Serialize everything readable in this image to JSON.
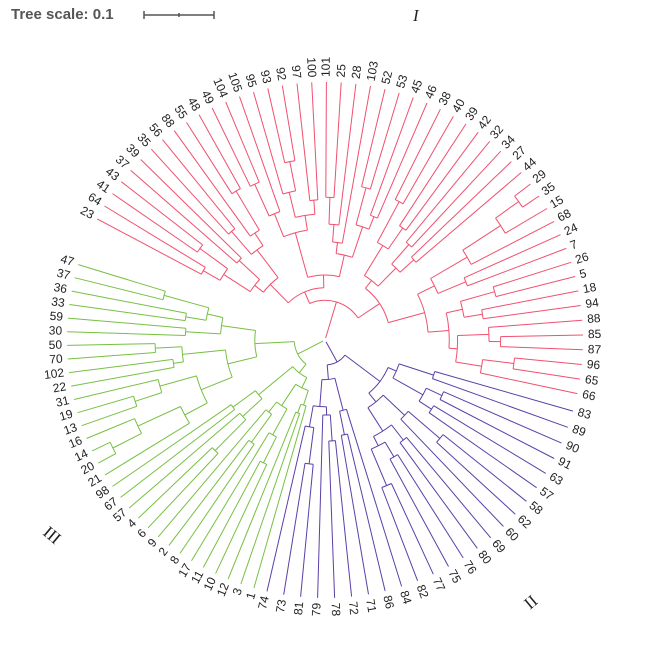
{
  "scale_bar": {
    "title": "Tree scale: 0.1"
  },
  "colors": {
    "group_I": "#f0506e",
    "group_II": "#5b3fa6",
    "group_III": "#77c043",
    "scale": "#555555"
  },
  "clade_labels": {
    "group_I": "I",
    "group_II": "II",
    "group_III": "III"
  },
  "groups": [
    {
      "id": "group_I",
      "leaves": [
        "23",
        "64",
        "41",
        "43",
        "37",
        "39",
        "35",
        "56",
        "88",
        "55",
        "48",
        "49",
        "104",
        "105",
        "95",
        "93",
        "92",
        "97",
        "100",
        "101",
        "25",
        "28",
        "103",
        "52",
        "53",
        "45",
        "46",
        "38",
        "40",
        "39",
        "42",
        "32",
        "34",
        "27",
        "44",
        "29",
        "35",
        "15",
        "68",
        "24",
        "7",
        "26",
        "5",
        "18",
        "94",
        "88",
        "85",
        "87",
        "96",
        "65",
        "66"
      ]
    },
    {
      "id": "group_II",
      "leaves": [
        "83",
        "89",
        "90",
        "91",
        "63",
        "57",
        "58",
        "62",
        "60",
        "69",
        "80",
        "76",
        "75",
        "77",
        "82",
        "84",
        "86",
        "71",
        "72",
        "78",
        "79",
        "81",
        "73",
        "74"
      ]
    },
    {
      "id": "group_III",
      "leaves": [
        "1",
        "3",
        "12",
        "10",
        "11",
        "17",
        "8",
        "2",
        "9",
        "6",
        "4",
        "57",
        "67",
        "98",
        "21",
        "20",
        "14",
        "16",
        "13",
        "19",
        "31",
        "22",
        "102",
        "70",
        "50",
        "30",
        "59",
        "33",
        "36",
        "37",
        "47"
      ]
    }
  ]
}
